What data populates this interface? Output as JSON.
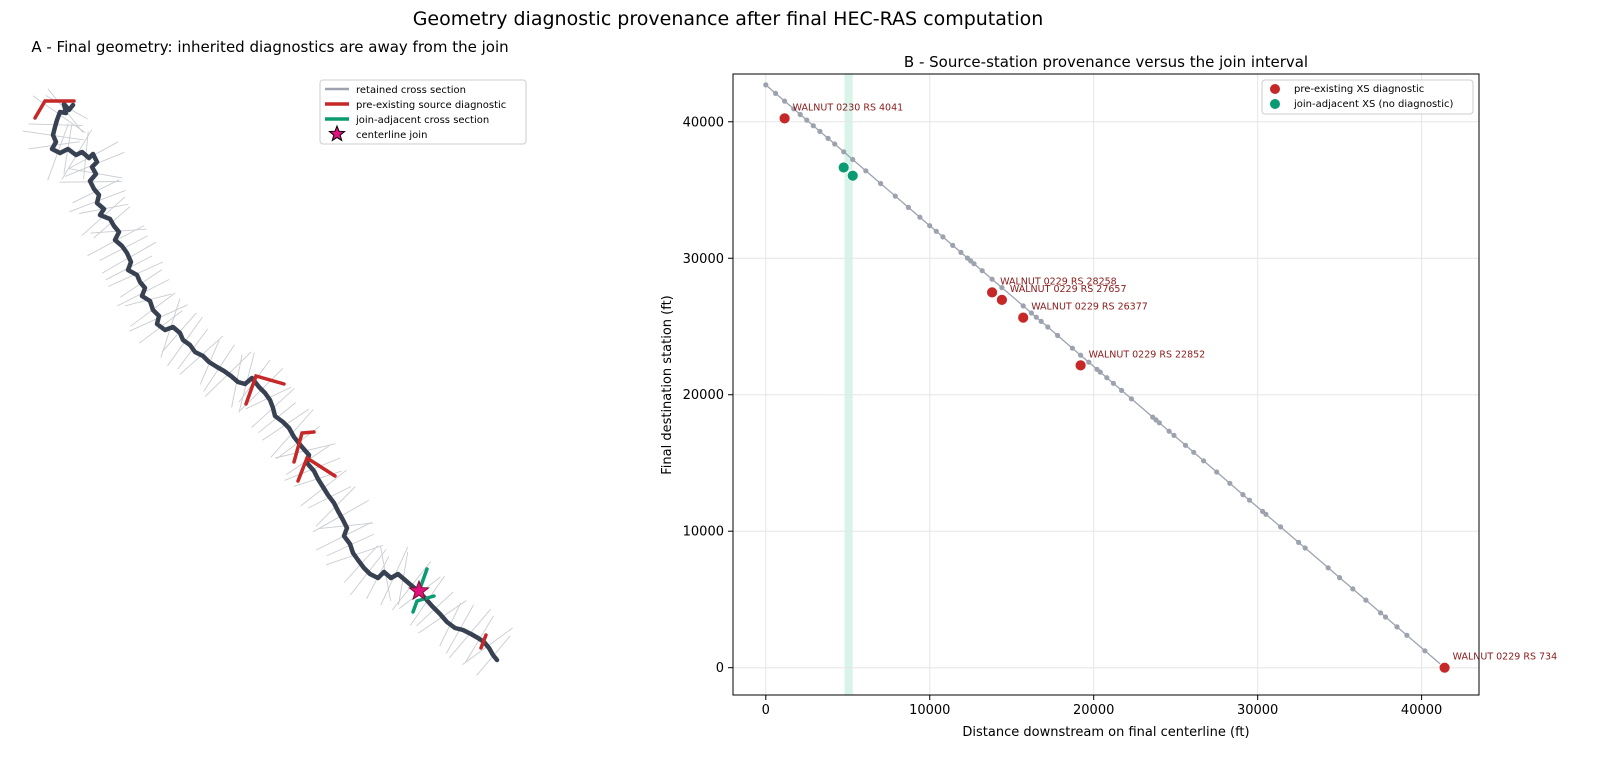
{
  "figure": {
    "title": "Geometry diagnostic provenance after final HEC-RAS computation"
  },
  "colors": {
    "centerline": "#374151",
    "retained_xs": "#9ca3af",
    "retained_xs_light": "#c9ccd2",
    "diagnostic": "#c62828",
    "join_adjacent": "#0a9b73",
    "join_star": "#e0117f",
    "label_text": "#8b1a1a",
    "join_band": "#d8f3e8",
    "grid": "#e6e6e6"
  },
  "panel_a": {
    "title": "A - Final geometry: inherited diagnostics are away from the join",
    "legend": [
      {
        "label": "retained cross section",
        "kind": "line",
        "color": "#9ca3af"
      },
      {
        "label": "pre-existing source diagnostic",
        "kind": "line",
        "color": "#c62828"
      },
      {
        "label": "join-adjacent cross section",
        "kind": "line",
        "color": "#0a9b73"
      },
      {
        "label": "centerline join",
        "kind": "star",
        "color": "#e0117f"
      }
    ]
  },
  "chart_data": {
    "type": "scatter",
    "title": "B - Source-station provenance versus the join interval",
    "xlabel": "Distance downstream on final centerline (ft)",
    "ylabel": "Final destination station (ft)",
    "xlim": [
      -2000,
      43500
    ],
    "ylim": [
      -2000,
      43500
    ],
    "xticks": [
      0,
      10000,
      20000,
      30000,
      40000
    ],
    "yticks": [
      0,
      10000,
      20000,
      30000,
      40000
    ],
    "grid": true,
    "legend_position": "top-right",
    "join_interval": [
      4800,
      5300
    ],
    "series": [
      {
        "name": "pre-existing XS diagnostic",
        "color": "#c62828",
        "points": [
          {
            "x": 1150,
            "y": 40250,
            "label": "WALNUT 0230 RS 4041"
          },
          {
            "x": 13800,
            "y": 27500,
            "label": "WALNUT 0229 RS 28258"
          },
          {
            "x": 14400,
            "y": 26950,
            "label": "WALNUT 0229 RS 27657"
          },
          {
            "x": 15700,
            "y": 25650,
            "label": "WALNUT 0229 RS 26377"
          },
          {
            "x": 19200,
            "y": 22150,
            "label": "WALNUT 0229 RS 22852"
          },
          {
            "x": 41400,
            "y": 0,
            "label": "WALNUT 0229 RS 734"
          }
        ]
      },
      {
        "name": "join-adjacent XS (no diagnostic)",
        "color": "#0a9b73",
        "points": [
          {
            "x": 4750,
            "y": 36650
          },
          {
            "x": 5300,
            "y": 36050
          }
        ]
      }
    ],
    "retained_points_x": [
      0,
      600,
      1150,
      1700,
      2100,
      2500,
      2900,
      3300,
      3800,
      4200,
      4750,
      5300,
      6100,
      7000,
      7900,
      8700,
      9400,
      10000,
      10400,
      10800,
      11400,
      11900,
      12300,
      12500,
      12700,
      13200,
      13800,
      14400,
      15700,
      16200,
      16500,
      16800,
      17200,
      17800,
      18700,
      19200,
      19700,
      20200,
      20400,
      20800,
      21200,
      21700,
      22300,
      23600,
      23800,
      24000,
      24600,
      24900,
      25600,
      26100,
      26700,
      27500,
      28300,
      29100,
      29500,
      30300,
      30500,
      31400,
      32500,
      32900,
      34300,
      35000,
      35800,
      36600,
      37500,
      37800,
      38500,
      39100,
      40200,
      41400
    ]
  }
}
